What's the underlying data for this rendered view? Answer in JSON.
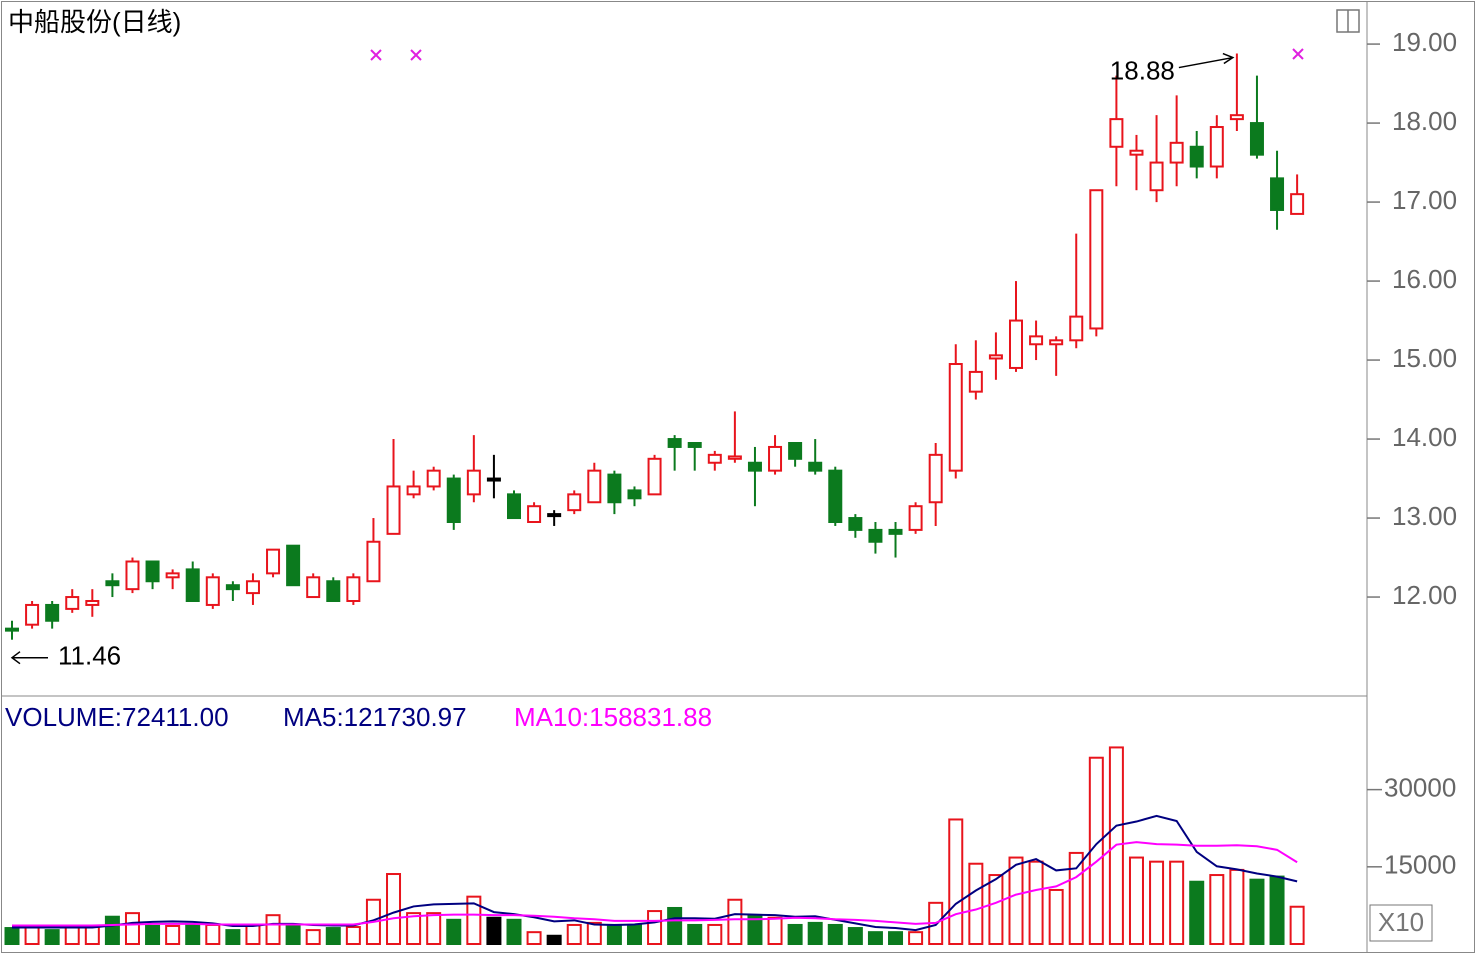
{
  "chart_data": [
    {
      "type": "candlestick",
      "title": "中船股份(日线)",
      "open": [
        11.6,
        11.65,
        11.9,
        11.85,
        11.9,
        12.2,
        12.1,
        12.45,
        12.25,
        12.35,
        11.9,
        12.15,
        12.05,
        12.3,
        12.65,
        12.0,
        12.2,
        11.95,
        12.2,
        12.8,
        13.3,
        13.4,
        13.5,
        13.3,
        13.5,
        13.3,
        12.95,
        13.05,
        13.1,
        13.2,
        13.55,
        13.35,
        13.3,
        14.0,
        13.95,
        13.7,
        13.75,
        13.7,
        13.6,
        13.95,
        13.7,
        13.6,
        13.0,
        12.85,
        12.85,
        12.85,
        13.2,
        13.6,
        14.6,
        15.02,
        14.9,
        15.2,
        15.2,
        15.25,
        15.4,
        17.7,
        17.6,
        17.15,
        17.5,
        17.7,
        17.45,
        18.05,
        18.0,
        17.3,
        16.85
      ],
      "high": [
        11.7,
        11.95,
        11.95,
        12.1,
        12.1,
        12.3,
        12.5,
        12.45,
        12.35,
        12.45,
        12.3,
        12.2,
        12.3,
        12.6,
        12.65,
        12.3,
        12.25,
        12.3,
        13.0,
        14.0,
        13.6,
        13.65,
        13.55,
        14.05,
        13.8,
        13.35,
        13.2,
        13.1,
        13.35,
        13.7,
        13.6,
        13.4,
        13.8,
        14.05,
        13.95,
        13.85,
        14.35,
        13.9,
        14.05,
        13.95,
        14.0,
        13.65,
        13.05,
        12.95,
        12.95,
        13.2,
        13.95,
        15.2,
        15.25,
        15.35,
        16.0,
        15.5,
        15.3,
        16.6,
        17.15,
        18.6,
        17.85,
        18.1,
        18.35,
        17.9,
        18.1,
        18.88,
        18.6,
        17.65,
        17.35
      ],
      "low": [
        11.46,
        11.6,
        11.6,
        11.8,
        11.75,
        12.0,
        12.05,
        12.1,
        12.1,
        11.95,
        11.85,
        11.95,
        11.9,
        12.25,
        12.15,
        12.0,
        11.95,
        11.9,
        12.2,
        12.8,
        13.25,
        13.35,
        12.85,
        13.2,
        13.25,
        13.0,
        12.95,
        12.9,
        13.05,
        13.2,
        13.05,
        13.15,
        13.3,
        13.6,
        13.6,
        13.6,
        13.7,
        13.15,
        13.55,
        13.65,
        13.55,
        12.9,
        12.75,
        12.55,
        12.5,
        12.8,
        12.9,
        13.5,
        14.5,
        14.75,
        14.85,
        15.0,
        14.8,
        15.15,
        15.3,
        17.2,
        17.15,
        17.0,
        17.2,
        17.3,
        17.3,
        17.9,
        17.55,
        16.65,
        16.85
      ],
      "close": [
        11.58,
        11.9,
        11.7,
        12.0,
        11.95,
        12.15,
        12.45,
        12.2,
        12.3,
        11.95,
        12.25,
        12.1,
        12.2,
        12.6,
        12.15,
        12.25,
        11.95,
        12.25,
        12.7,
        13.4,
        13.4,
        13.6,
        12.95,
        13.6,
        13.5,
        13.0,
        13.15,
        13.05,
        13.3,
        13.6,
        13.2,
        13.25,
        13.75,
        13.9,
        13.9,
        13.8,
        13.78,
        13.6,
        13.9,
        13.75,
        13.6,
        12.95,
        12.85,
        12.7,
        12.8,
        13.15,
        13.8,
        14.95,
        14.85,
        15.06,
        15.5,
        15.3,
        15.25,
        15.55,
        17.15,
        18.05,
        17.65,
        17.5,
        17.75,
        17.45,
        17.95,
        18.1,
        17.6,
        16.9,
        17.1
      ],
      "up_color": "#e8141c",
      "down_color": "#0b7a1e",
      "flat_color": "#000000",
      "ylim": [
        10.76,
        19.52
      ],
      "yticks": [
        {
          "value": 12,
          "label": "12.00"
        },
        {
          "value": 13,
          "label": "13.00"
        },
        {
          "value": 14,
          "label": "14.00"
        },
        {
          "value": 15,
          "label": "15.00"
        },
        {
          "value": 16,
          "label": "16.00"
        },
        {
          "value": 17,
          "label": "17.00"
        },
        {
          "value": 18,
          "label": "18.00"
        },
        {
          "value": 19,
          "label": "19.00"
        }
      ],
      "annotations": [
        18.88,
        11.46
      ]
    },
    {
      "type": "volume",
      "scale_note": "X10",
      "series": [
        {
          "name": "VOLUME:72411.00",
          "color": "#000080",
          "values": [
            3100,
            3500,
            2700,
            3300,
            3500,
            5300,
            6000,
            3500,
            3500,
            3900,
            3700,
            2700,
            3700,
            5600,
            3700,
            2700,
            3100,
            3300,
            8600,
            13600,
            6000,
            6000,
            4700,
            9200,
            5100,
            4700,
            2300,
            1600,
            3700,
            4100,
            3700,
            3700,
            6400,
            7000,
            3700,
            3700,
            8600,
            5600,
            5100,
            3700,
            4100,
            3700,
            3100,
            2300,
            2300,
            2300,
            8000,
            24200,
            15600,
            13400,
            16800,
            16000,
            10500,
            17700,
            36200,
            38200,
            16800,
            16000,
            16000,
            12100,
            13400,
            14400,
            12500,
            13100,
            7241.1
          ]
        },
        {
          "name": "MA5:121730.97",
          "color": "#000080",
          "values": [
            3200,
            3200,
            3200,
            3200,
            3200,
            3600,
            4100,
            4300,
            4400,
            4300,
            4000,
            3500,
            3500,
            3900,
            3900,
            3700,
            3600,
            3600,
            4600,
            6100,
            7300,
            7700,
            7800,
            7900,
            6200,
            5800,
            5200,
            4400,
            4600,
            3800,
            3700,
            3800,
            4200,
            5000,
            5000,
            4900,
            5800,
            5700,
            5600,
            5300,
            5400,
            4700,
            4000,
            3300,
            3100,
            2700,
            3700,
            7800,
            10400,
            12600,
            15400,
            16500,
            14300,
            14700,
            19400,
            23000,
            23800,
            24900,
            23900,
            17900,
            15100,
            14500,
            13700,
            13100,
            12173.1
          ]
        },
        {
          "name": "MA10:158831.88",
          "color": "#ff00ff",
          "values": [
            3600,
            3600,
            3600,
            3600,
            3600,
            3700,
            3800,
            3900,
            3900,
            3900,
            3800,
            3800,
            3800,
            3800,
            3800,
            3800,
            3800,
            3800,
            4300,
            5000,
            5400,
            5600,
            5700,
            5700,
            5600,
            5600,
            5500,
            5300,
            5000,
            4800,
            4500,
            4500,
            4500,
            4600,
            4600,
            4700,
            4800,
            4800,
            4900,
            5100,
            5000,
            4800,
            4700,
            4500,
            4200,
            3900,
            4100,
            5800,
            6700,
            8000,
            9600,
            10500,
            11200,
            13000,
            16000,
            19300,
            19800,
            19400,
            19300,
            19100,
            19100,
            19200,
            19000,
            18300,
            15883.2
          ]
        }
      ],
      "ylim": [
        0,
        48000
      ],
      "yticks": [
        15000,
        30000
      ]
    }
  ]
}
